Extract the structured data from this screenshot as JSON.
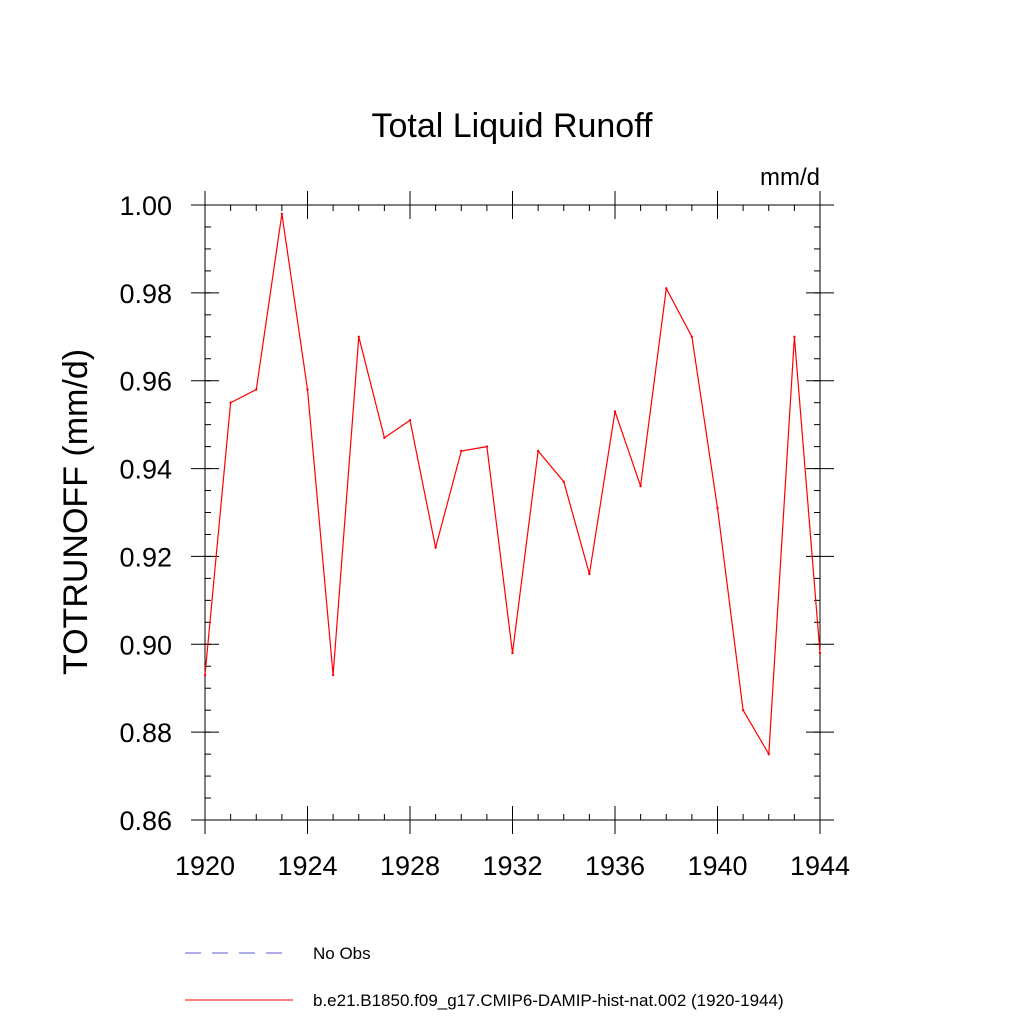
{
  "chart_data": {
    "type": "line",
    "title": "Total Liquid Runoff",
    "units_label": "mm/d",
    "ylabel": "TOTRUNOFF  (mm/d)",
    "xlabel": "",
    "xlim": [
      1920,
      1944
    ],
    "ylim": [
      0.86,
      1.0
    ],
    "x_ticks": [
      1920,
      1924,
      1928,
      1932,
      1936,
      1940,
      1944
    ],
    "x_tick_labels": [
      "1920",
      "1924",
      "1928",
      "1932",
      "1936",
      "1940",
      "1944"
    ],
    "y_ticks": [
      0.86,
      0.88,
      0.9,
      0.92,
      0.94,
      0.96,
      0.98,
      1.0
    ],
    "y_tick_labels": [
      "0.86",
      "0.88",
      "0.90",
      "0.92",
      "0.94",
      "0.96",
      "0.98",
      "1.00"
    ],
    "grid": false,
    "legend_position": "bottom",
    "series": [
      {
        "name": "No Obs",
        "color": "#5b5bd6",
        "dash": "dashed",
        "x": [],
        "values": []
      },
      {
        "name": "b.e21.B1850.f09_g17.CMIP6-DAMIP-hist-nat.002 (1920-1944)",
        "color": "#ff0000",
        "dash": "solid",
        "x": [
          1920,
          1921,
          1922,
          1923,
          1924,
          1925,
          1926,
          1927,
          1928,
          1929,
          1930,
          1931,
          1932,
          1933,
          1934,
          1935,
          1936,
          1937,
          1938,
          1939,
          1940,
          1941,
          1942,
          1943,
          1944
        ],
        "values": [
          0.893,
          0.955,
          0.958,
          0.998,
          0.958,
          0.893,
          0.97,
          0.947,
          0.951,
          0.922,
          0.944,
          0.945,
          0.898,
          0.944,
          0.937,
          0.916,
          0.953,
          0.936,
          0.981,
          0.97,
          0.931,
          0.885,
          0.875,
          0.97,
          0.898
        ]
      }
    ]
  }
}
